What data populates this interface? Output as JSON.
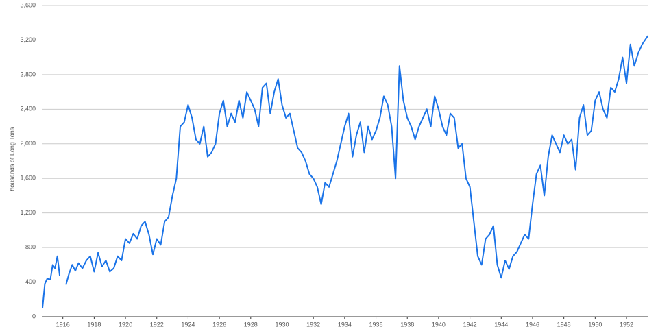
{
  "chart_data": {
    "type": "line",
    "y_label": "Thousands of Long Tons",
    "x": [
      1914.7,
      1914.85,
      1915.0,
      1915.2,
      1915.35,
      1915.5,
      1915.65,
      1915.8,
      1916.0,
      1916.2,
      1916.4,
      1916.6,
      1916.8,
      1917.0,
      1917.25,
      1917.5,
      1917.75,
      1918.0,
      1918.25,
      1918.5,
      1918.75,
      1919.0,
      1919.25,
      1919.5,
      1919.75,
      1920.0,
      1920.25,
      1920.5,
      1920.75,
      1921.0,
      1921.25,
      1921.5,
      1921.75,
      1922.0,
      1922.25,
      1922.5,
      1922.75,
      1923.0,
      1923.25,
      1923.5,
      1923.75,
      1924.0,
      1924.25,
      1924.5,
      1924.75,
      1925.0,
      1925.25,
      1925.5,
      1925.75,
      1926.0,
      1926.25,
      1926.5,
      1926.75,
      1927.0,
      1927.25,
      1927.5,
      1927.75,
      1928.0,
      1928.25,
      1928.5,
      1928.75,
      1929.0,
      1929.25,
      1929.5,
      1929.75,
      1930.0,
      1930.25,
      1930.5,
      1930.75,
      1931.0,
      1931.25,
      1931.5,
      1931.75,
      1932.0,
      1932.25,
      1932.5,
      1932.75,
      1933.0,
      1933.25,
      1933.5,
      1933.75,
      1934.0,
      1934.25,
      1934.5,
      1934.75,
      1935.0,
      1935.25,
      1935.5,
      1935.75,
      1936.0,
      1936.25,
      1936.5,
      1936.75,
      1937.0,
      1937.25,
      1937.5,
      1937.75,
      1938.0,
      1938.25,
      1938.5,
      1938.75,
      1939.0,
      1939.25,
      1939.5,
      1939.75,
      1940.0,
      1940.25,
      1940.5,
      1940.75,
      1941.0,
      1941.25,
      1941.5,
      1941.75,
      1942.0,
      1942.25,
      1942.5,
      1942.75,
      1943.0,
      1943.25,
      1943.5,
      1943.75,
      1944.0,
      1944.25,
      1944.5,
      1944.75,
      1945.0,
      1945.25,
      1945.5,
      1945.75,
      1946.0,
      1946.25,
      1946.5,
      1946.75,
      1947.0,
      1947.25,
      1947.5,
      1947.75,
      1948.0,
      1948.25,
      1948.5,
      1948.75,
      1949.0,
      1949.25,
      1949.5,
      1949.75,
      1950.0,
      1950.25,
      1950.5,
      1950.75,
      1951.0,
      1951.25,
      1951.5,
      1951.75,
      1952.0,
      1952.25,
      1952.5,
      1952.75,
      1953.0,
      1953.37
    ],
    "series": [
      {
        "name": "Thousands of Long Tons",
        "color": "#1a73e8",
        "values": [
          100,
          380,
          440,
          430,
          600,
          560,
          700,
          470,
          null,
          370,
          500,
          600,
          530,
          620,
          560,
          650,
          700,
          520,
          740,
          580,
          650,
          520,
          560,
          700,
          650,
          900,
          850,
          960,
          900,
          1050,
          1100,
          950,
          720,
          900,
          830,
          1100,
          1150,
          1400,
          1600,
          2200,
          2250,
          2450,
          2300,
          2050,
          2000,
          2200,
          1850,
          1900,
          2000,
          2350,
          2500,
          2200,
          2350,
          2250,
          2500,
          2300,
          2600,
          2500,
          2400,
          2200,
          2650,
          2700,
          2350,
          2600,
          2750,
          2450,
          2300,
          2350,
          2150,
          1950,
          1900,
          1800,
          1650,
          1600,
          1500,
          1300,
          1550,
          1500,
          1650,
          1800,
          2000,
          2200,
          2350,
          1850,
          2100,
          2250,
          1900,
          2200,
          2050,
          2150,
          2300,
          2550,
          2450,
          2200,
          1600,
          2900,
          2500,
          2300,
          2200,
          2050,
          2200,
          2300,
          2400,
          2200,
          2550,
          2400,
          2200,
          2100,
          2350,
          2300,
          1950,
          2000,
          1600,
          1500,
          1100,
          700,
          600,
          900,
          950,
          1050,
          600,
          450,
          650,
          550,
          700,
          750,
          850,
          950,
          900,
          1300,
          1650,
          1750,
          1400,
          1850,
          2100,
          2000,
          1900,
          2100,
          2000,
          2050,
          1700,
          2300,
          2450,
          2100,
          2150,
          2500,
          2600,
          2400,
          2300,
          2650,
          2600,
          2750,
          3000,
          2700,
          3150,
          2900,
          3050,
          3150,
          3250
        ]
      }
    ],
    "xlim": [
      1914.7,
      1953.4
    ],
    "xticks": [
      1916,
      1918,
      1920,
      1922,
      1924,
      1926,
      1928,
      1930,
      1932,
      1934,
      1936,
      1938,
      1940,
      1942,
      1944,
      1946,
      1948,
      1950,
      1952
    ],
    "ylim": [
      0,
      3600
    ],
    "yticks": [
      0,
      400,
      800,
      {
        "value": 1200,
        "label": "1,200"
      },
      {
        "value": 1600,
        "label": "1,600"
      },
      {
        "value": 2000,
        "label": "2,000"
      },
      {
        "value": 2400,
        "label": "2,400"
      },
      {
        "value": 2800,
        "label": "2,800"
      },
      {
        "value": 3200,
        "label": "3,200"
      },
      {
        "value": 3600,
        "label": "3,600"
      }
    ],
    "grid": true
  }
}
